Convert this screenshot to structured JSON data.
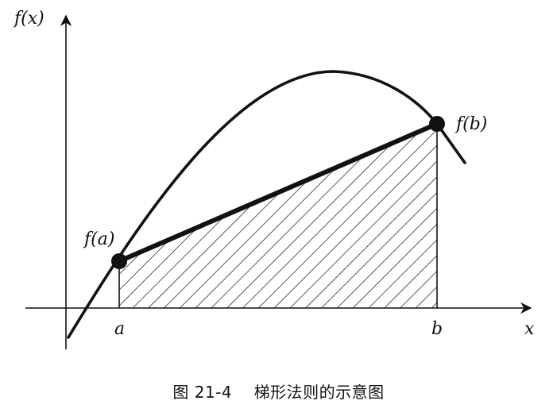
{
  "figure": {
    "labels": {
      "y_axis": "f(x)",
      "x_axis": "x",
      "point_a": "a",
      "point_b": "b",
      "value_a": "f(a)",
      "value_b": "f(b)"
    },
    "caption": "图 21-4    梯形法则的示意图"
  }
}
